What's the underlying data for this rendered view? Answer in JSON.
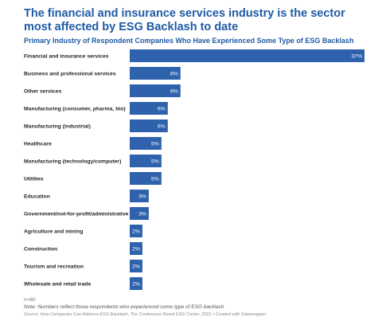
{
  "title": "The financial and insurance services industry is the sector most affected by ESG Backlash to date",
  "subtitle": "Primary Industry of Respondent Companies Who Have Experienced Some Type of ESG Backlash",
  "footer": {
    "n": "n=60",
    "note": "Note: Numbers reflect those respondents who experienced some type of ESG backlash",
    "source": "Source: How Companies Can Address ESG Backlash, The Conference Board ESG Center, 2022 • Created with Datawrapper"
  },
  "colors": {
    "bar": "#2e62ad",
    "title": "#1f5aa5",
    "label_inside": "#ffffff"
  },
  "chart_data": {
    "type": "bar",
    "orientation": "horizontal",
    "categories": [
      "Financial and insurance services",
      "Business and professional services",
      "Other services",
      "Manufacturing (consumer, pharma, bio)",
      "Manufacturing (industrial)",
      "Healthcare",
      "Manufacturing (technology/computer)",
      "Utilities",
      "Education",
      "Government/not-for-profit/administrative",
      "Agriculture and mining",
      "Construction",
      "Tourism and recreation",
      "Wholesale and retail trade"
    ],
    "values": [
      37,
      8,
      8,
      6,
      6,
      5,
      5,
      5,
      3,
      3,
      2,
      2,
      2,
      2
    ],
    "value_labels": [
      "37%",
      "8%",
      "8%",
      "6%",
      "6%",
      "5%",
      "5%",
      "5%",
      "3%",
      "3%",
      "2%",
      "2%",
      "2%",
      "2%"
    ],
    "xlim": [
      0,
      37
    ],
    "grid": false,
    "legend": "none"
  }
}
